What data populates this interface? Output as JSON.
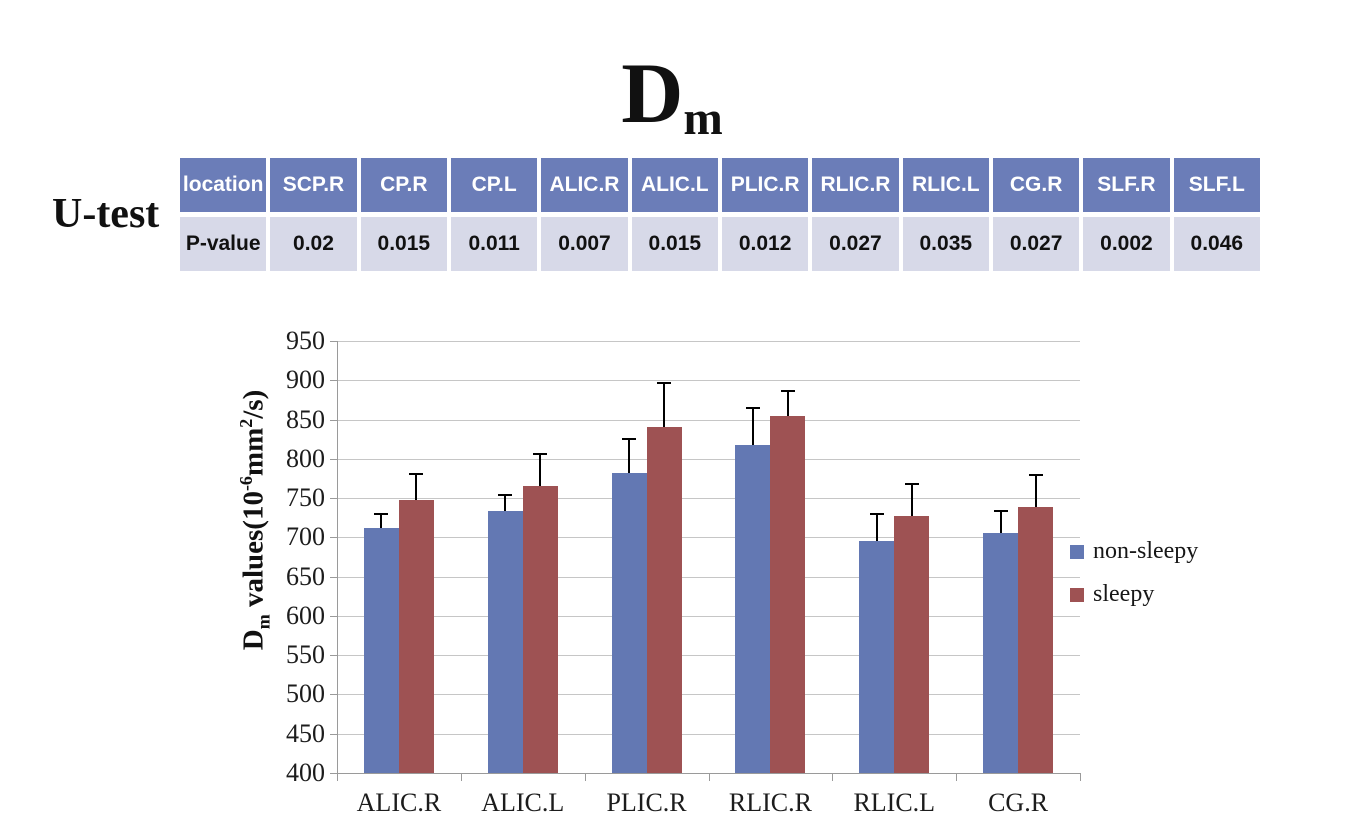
{
  "title": {
    "main": "D",
    "sub": "m"
  },
  "utest_label": "U-test",
  "table": {
    "header": [
      "location",
      "SCP.R",
      "CP.R",
      "CP.L",
      "ALIC.R",
      "ALIC.L",
      "PLIC.R",
      "RLIC.R",
      "RLIC.L",
      "CG.R",
      "SLF.R",
      "SLF.L"
    ],
    "row_label": "P-value",
    "p_values": [
      "0.02",
      "0.015",
      "0.011",
      "0.007",
      "0.015",
      "0.012",
      "0.027",
      "0.035",
      "0.027",
      "0.002",
      "0.046"
    ],
    "header_bg": "#6b7db8",
    "row_bg": "#d7d9e8"
  },
  "chart_data": {
    "type": "bar",
    "title": "Dm",
    "categories": [
      "ALIC.R",
      "ALIC.L",
      "PLIC.R",
      "RLIC.R",
      "RLIC.L",
      "CG.R"
    ],
    "series": [
      {
        "name": "non-sleepy",
        "color": "#6378b3",
        "values": [
          712,
          733,
          782,
          818,
          695,
          705
        ],
        "errors_up": [
          18,
          21,
          43,
          47,
          35,
          28
        ]
      },
      {
        "name": "sleepy",
        "color": "#9e5253",
        "values": [
          747,
          765,
          841,
          855,
          727,
          739
        ],
        "errors_up": [
          34,
          41,
          56,
          31,
          41,
          40
        ]
      }
    ],
    "ylabel": "Dm values(10-6mm2/s)",
    "ylabel_parts": {
      "d": "D",
      "m": "m",
      "mid": " values(10",
      "exp": "-6",
      "unit": "mm",
      "sq": "2",
      "end": "/s)"
    },
    "xlabel": "",
    "ylim": [
      400,
      950
    ],
    "ytick_step": 50,
    "grid": true,
    "legend_position": "right",
    "error_bars": "upper-only",
    "gridline_color": "#c6c6c6",
    "axis_color": "#9a9a9a"
  }
}
